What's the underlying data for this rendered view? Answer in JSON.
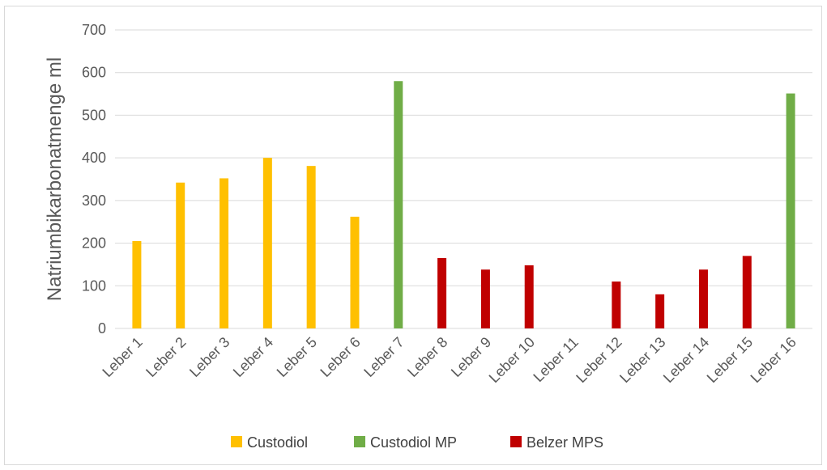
{
  "chart_data": {
    "type": "bar",
    "title": "",
    "xlabel": "",
    "ylabel": "Natriumbikarbonatmenge ml",
    "ylim": [
      0,
      700
    ],
    "yticks": [
      0,
      100,
      200,
      300,
      400,
      500,
      600,
      700
    ],
    "grid": true,
    "legend_position": "bottom",
    "categories": [
      "Leber 1",
      "Leber 2",
      "Leber 3",
      "Leber 4",
      "Leber 5",
      "Leber 6",
      "Leber 7",
      "Leber 8",
      "Leber 9",
      "Leber 10",
      "Leber 11",
      "Leber 12",
      "Leber 13",
      "Leber 14",
      "Leber 15",
      "Leber 16"
    ],
    "series": [
      {
        "name": "Custodiol",
        "color": "#ffc000",
        "values": [
          205,
          342,
          352,
          400,
          381,
          262,
          null,
          null,
          null,
          null,
          null,
          null,
          null,
          null,
          null,
          null
        ]
      },
      {
        "name": "Custodiol MP",
        "color": "#70ad47",
        "values": [
          null,
          null,
          null,
          null,
          null,
          null,
          580,
          null,
          null,
          null,
          null,
          null,
          null,
          null,
          null,
          551
        ]
      },
      {
        "name": "Belzer MPS",
        "color": "#c00000",
        "values": [
          null,
          null,
          null,
          null,
          null,
          null,
          null,
          165,
          138,
          148,
          null,
          110,
          80,
          138,
          170,
          null
        ]
      }
    ]
  }
}
